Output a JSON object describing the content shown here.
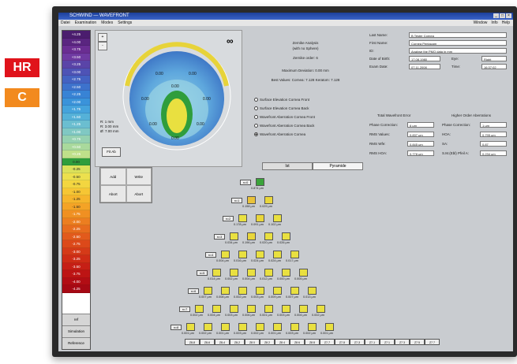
{
  "badges": {
    "hr": "HR",
    "c": "C"
  },
  "colors": {
    "hr": "#e0131b",
    "c": "#f28a1e"
  },
  "window": {
    "title": "SCHWIND — WAVEFRONT",
    "controls": [
      "_",
      "□",
      "×"
    ]
  },
  "menu": {
    "items": [
      "Datei",
      "Examination",
      "Modes",
      "Settings"
    ],
    "right_items": [
      "Window",
      "Info",
      "Help"
    ]
  },
  "scale": {
    "labels": [
      "+4.25",
      "+4.00",
      "+3.75",
      "+3.50",
      "+3.25",
      "+3.00",
      "+2.75",
      "+2.50",
      "+2.25",
      "+2.00",
      "+1.75",
      "+1.50",
      "+1.25",
      "+1.00",
      "+0.75",
      "+0.50",
      "+0.25",
      "0.00",
      "-0.25",
      "-0.50",
      "-0.75",
      "-1.00",
      "-1.25",
      "-1.50",
      "-1.75",
      "-2.00",
      "-2.25",
      "-2.50",
      "-2.75",
      "-3.00",
      "-3.25",
      "-3.50",
      "-3.75",
      "-4.00",
      "-4.25"
    ],
    "colors": [
      "#4b1d6e",
      "#5a2580",
      "#6a2d92",
      "#6f3aa2",
      "#5a44a8",
      "#4e53b6",
      "#4462c2",
      "#3d72cc",
      "#3883d5",
      "#3a93da",
      "#45a3dc",
      "#55b1d8",
      "#6bbed0",
      "#80c8c3",
      "#95d1b0",
      "#a9d99c",
      "#bfe08a",
      "#2f9d3c",
      "#dbe15a",
      "#ece04e",
      "#f3d640",
      "#f6c634",
      "#f6b52c",
      "#f4a326",
      "#f09022",
      "#ec7e20",
      "#e76c1e",
      "#e25a1c",
      "#dc491a",
      "#d53a18",
      "#ce2c16",
      "#c61f15",
      "#bd1414",
      "#b20d14",
      "#a60914"
    ],
    "buttons": [
      "ref",
      "Simulation",
      "Reference"
    ]
  },
  "map": {
    "corner_buttons": [
      "+",
      "-"
    ],
    "sync_icon": "∞",
    "legend": [
      "R: 1 mm",
      "R: 3.00 mm",
      "Ø: 7.00 mm"
    ],
    "fit_button": "Fit Ab",
    "mini_table": [
      "Add",
      "Write",
      "Abort",
      "Abort"
    ]
  },
  "analysis": {
    "title": "Zernike Analysis",
    "subtitle": "(with no Sphere)",
    "order": "Zernike order: 6",
    "max_dev": "Maximum Deviation: 0.00 mm",
    "radii": "Best Values:  Cornea: 7.128   Keratom: 7.128",
    "options": [
      {
        "label": "Surface Elevation Cornea Front",
        "selected": false
      },
      {
        "label": "Surface Elevation Cornea Back",
        "selected": false
      },
      {
        "label": "Wavefront Aberration Cornea Front",
        "selected": false
      },
      {
        "label": "Wavefront Aberration Cornea Back",
        "selected": false
      },
      {
        "label": "Wavefront Aberration Cornea",
        "selected": true
      }
    ],
    "tabs": [
      "Ist",
      "Pyramide"
    ]
  },
  "patient": {
    "rows": [
      {
        "label": "Last Name:",
        "value": "B Tester Cornea"
      },
      {
        "label": "First Name:",
        "value": "Cornea Pentacam"
      },
      {
        "label": "ID:",
        "value": "Analyse the PMO data in mm"
      },
      {
        "label": "Date of Birth:",
        "value": "17.08.1980",
        "extra_label": "Eye:",
        "extra_value": "Right"
      },
      {
        "label": "Exam Date:",
        "value": "07.11.2008",
        "extra_label": "Time:",
        "extra_value": "16:37:02"
      }
    ],
    "total_header": "Total Wavefront Error",
    "higher_header": "Higher Order Aberrations",
    "total_rows": [
      {
        "label": "Phase Correction:",
        "value": "6 μm"
      },
      {
        "label": "RMS Values:",
        "value": "0.837 μm"
      },
      {
        "label": "RMS Wfe:",
        "value": "0.845 μm"
      },
      {
        "label": "RMS HOA:",
        "value": "0.778 μm"
      }
    ],
    "higher_rows": [
      {
        "label": "Phase Correction:",
        "value": "1 μm"
      },
      {
        "label": "HOA:",
        "value": "0.795 μm"
      },
      {
        "label": "SA:",
        "value": "0.87"
      },
      {
        "label": "S.M.(Ebl) Pfeil A:",
        "value": "0.234 μm"
      }
    ]
  },
  "pyramid": {
    "rows": [
      {
        "label": "n=0",
        "cells": [
          {
            "color": "#3aa33a",
            "value": "0.874 μm"
          }
        ]
      },
      {
        "label": "n=1",
        "cells": [
          {
            "color": "#e9c23a",
            "value": "0.158 μm"
          },
          {
            "color": "#e9d63a",
            "value": "0.029 μm"
          }
        ]
      },
      {
        "label": "n=2",
        "cells": [
          {
            "color": "#e9e040",
            "value": "0.178 μm"
          },
          {
            "color": "#e9d63a",
            "value": "0.091 μm"
          },
          {
            "color": "#e9e040",
            "value": "0.102 μm"
          }
        ]
      },
      {
        "label": "n=3",
        "cells": [
          {
            "color": "#e9e040",
            "value": "0.034 μm"
          },
          {
            "color": "#e9d63a",
            "value": "0.196 μm"
          },
          {
            "color": "#e9e040",
            "value": "0.020 μm"
          },
          {
            "color": "#e9e040",
            "value": "0.026 μm"
          }
        ]
      },
      {
        "label": "n=4",
        "cells": [
          {
            "color": "#e9e040",
            "value": "0.004 μm"
          },
          {
            "color": "#e9e040",
            "value": "0.016 μm"
          },
          {
            "color": "#e9e040",
            "value": "0.024 μm"
          },
          {
            "color": "#e9e040",
            "value": "0.024 μm"
          },
          {
            "color": "#e9e040",
            "value": "0.017 μm"
          }
        ]
      },
      {
        "label": "n=5",
        "cells": [
          {
            "color": "#e9e040",
            "value": "0.014 μm"
          },
          {
            "color": "#e9e040",
            "value": "0.002 μm"
          },
          {
            "color": "#e9e040",
            "value": "0.004 μm"
          },
          {
            "color": "#e9e040",
            "value": "0.012 μm"
          },
          {
            "color": "#e9e040",
            "value": "0.000 μm"
          },
          {
            "color": "#e9e040",
            "value": "0.005 μm"
          }
        ]
      },
      {
        "label": "n=6",
        "cells": [
          {
            "color": "#e9e040",
            "value": "0.007 μm"
          },
          {
            "color": "#e9e040",
            "value": "0.008 μm"
          },
          {
            "color": "#e9e040",
            "value": "0.002 μm"
          },
          {
            "color": "#e9e040",
            "value": "0.003 μm"
          },
          {
            "color": "#e9e040",
            "value": "0.009 μm"
          },
          {
            "color": "#e9e040",
            "value": "0.007 μm"
          },
          {
            "color": "#e9e040",
            "value": "0.013 μm"
          }
        ]
      },
      {
        "label": "n=7",
        "cells": [
          {
            "color": "#e9e040",
            "value": "0.002 μm"
          },
          {
            "color": "#e9e040",
            "value": "0.004 μm"
          },
          {
            "color": "#e9e040",
            "value": "0.003 μm"
          },
          {
            "color": "#e9e040",
            "value": "0.006 μm"
          },
          {
            "color": "#e9e040",
            "value": "0.001 μm"
          },
          {
            "color": "#e9e040",
            "value": "0.003 μm"
          },
          {
            "color": "#e9e040",
            "value": "0.004 μm"
          },
          {
            "color": "#e9e040",
            "value": "0.002 μm"
          }
        ]
      },
      {
        "label": "n=8",
        "cells": [
          {
            "color": "#e9e040",
            "value": "0.001 μm"
          },
          {
            "color": "#e9e040",
            "value": "0.002 μm"
          },
          {
            "color": "#e9e040",
            "value": "0.001 μm"
          },
          {
            "color": "#e9e040",
            "value": "0.003 μm"
          },
          {
            "color": "#e9e040",
            "value": "0.002 μm"
          },
          {
            "color": "#e9e040",
            "value": "0.001 μm"
          },
          {
            "color": "#e9e040",
            "value": "0.003 μm"
          },
          {
            "color": "#e9e040",
            "value": "0.002 μm"
          },
          {
            "color": "#e9e040",
            "value": "0.001 μm"
          }
        ]
      }
    ],
    "bottom_buttons": [
      "Z8-8",
      "Z8-6",
      "Z8-4",
      "Z8-2",
      "Z8 0",
      "Z8 2",
      "Z8 4",
      "Z8 6",
      "Z8 8",
      "Z7-7",
      "Z7-5",
      "Z7-3",
      "Z7-1",
      "Z7 1",
      "Z7 3",
      "Z7 5",
      "Z7 7"
    ]
  }
}
